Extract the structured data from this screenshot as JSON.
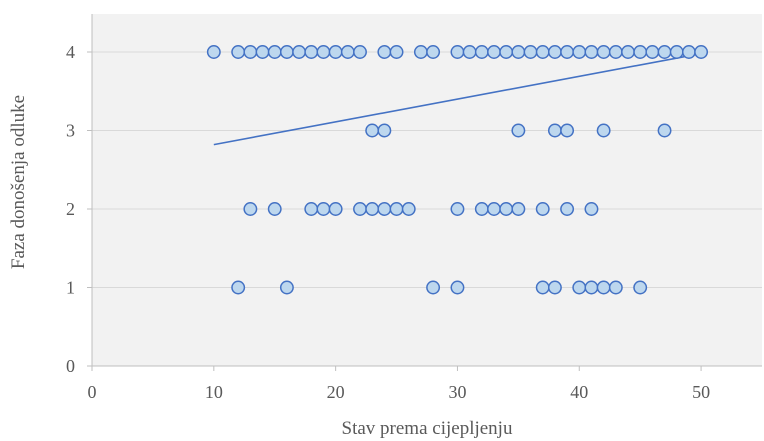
{
  "chart_data": {
    "type": "scatter",
    "title": "",
    "xlabel": "Stav prema cijepljenju",
    "ylabel": "Faza donošenja odluke",
    "xlim": [
      0,
      55
    ],
    "ylim": [
      0,
      4
    ],
    "x_ticks": [
      "0",
      "10",
      "20",
      "30",
      "40",
      "50"
    ],
    "y_ticks": [
      "0",
      "1",
      "2",
      "3",
      "4"
    ],
    "grid": "horizontal",
    "legend": "none",
    "marker_fill": "#bdd7ee",
    "marker_edge": "#4472c4",
    "trendline_color": "#4472c4",
    "plot_background": "#f2f2f2",
    "series": [
      {
        "points": [
          [
            10,
            4
          ],
          [
            12,
            4
          ],
          [
            13,
            4
          ],
          [
            14,
            4
          ],
          [
            15,
            4
          ],
          [
            16,
            4
          ],
          [
            17,
            4
          ],
          [
            18,
            4
          ],
          [
            19,
            4
          ],
          [
            20,
            4
          ],
          [
            21,
            4
          ],
          [
            22,
            4
          ],
          [
            24,
            4
          ],
          [
            25,
            4
          ],
          [
            27,
            4
          ],
          [
            28,
            4
          ],
          [
            30,
            4
          ],
          [
            31,
            4
          ],
          [
            32,
            4
          ],
          [
            33,
            4
          ],
          [
            34,
            4
          ],
          [
            35,
            4
          ],
          [
            36,
            4
          ],
          [
            37,
            4
          ],
          [
            38,
            4
          ],
          [
            39,
            4
          ],
          [
            40,
            4
          ],
          [
            41,
            4
          ],
          [
            42,
            4
          ],
          [
            43,
            4
          ],
          [
            44,
            4
          ],
          [
            45,
            4
          ],
          [
            46,
            4
          ],
          [
            47,
            4
          ],
          [
            48,
            4
          ],
          [
            49,
            4
          ],
          [
            50,
            4
          ],
          [
            23,
            3
          ],
          [
            24,
            3
          ],
          [
            35,
            3
          ],
          [
            38,
            3
          ],
          [
            39,
            3
          ],
          [
            42,
            3
          ],
          [
            47,
            3
          ],
          [
            13,
            2
          ],
          [
            15,
            2
          ],
          [
            18,
            2
          ],
          [
            19,
            2
          ],
          [
            20,
            2
          ],
          [
            22,
            2
          ],
          [
            23,
            2
          ],
          [
            24,
            2
          ],
          [
            25,
            2
          ],
          [
            26,
            2
          ],
          [
            30,
            2
          ],
          [
            32,
            2
          ],
          [
            33,
            2
          ],
          [
            34,
            2
          ],
          [
            35,
            2
          ],
          [
            37,
            2
          ],
          [
            39,
            2
          ],
          [
            41,
            2
          ],
          [
            12,
            1
          ],
          [
            16,
            1
          ],
          [
            28,
            1
          ],
          [
            30,
            1
          ],
          [
            37,
            1
          ],
          [
            38,
            1
          ],
          [
            40,
            1
          ],
          [
            41,
            1
          ],
          [
            42,
            1
          ],
          [
            43,
            1
          ],
          [
            45,
            1
          ]
        ]
      }
    ],
    "trendline": {
      "x": [
        10,
        50
      ],
      "y": [
        2.82,
        3.98
      ]
    }
  }
}
